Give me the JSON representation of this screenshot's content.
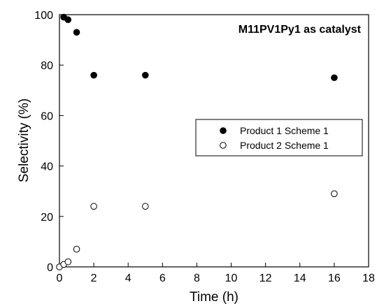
{
  "chart_data": {
    "type": "scatter",
    "title": "",
    "annotation": "M11PV1Py1 as catalyst",
    "xlabel": "Time (h)",
    "ylabel": "Selectivity (%)",
    "xlim": [
      0,
      18
    ],
    "ylim": [
      0,
      100
    ],
    "xticks": [
      "0",
      "2",
      "4",
      "6",
      "8",
      "10",
      "12",
      "14",
      "16",
      "18"
    ],
    "yticks": [
      "0",
      "20",
      "40",
      "60",
      "80",
      "100"
    ],
    "grid": false,
    "legend_position": "center-right",
    "series": [
      {
        "name": "Product 1 Scheme 1",
        "marker": "filled-circle",
        "color": "#000000",
        "x": [
          0.25,
          0.5,
          1,
          2,
          5,
          16
        ],
        "y": [
          99,
          98,
          93,
          76,
          76,
          75
        ]
      },
      {
        "name": "Product 2 Scheme 1",
        "marker": "open-circle",
        "color": "#000000",
        "x": [
          0,
          0.25,
          0.5,
          1,
          2,
          5,
          16
        ],
        "y": [
          0,
          1,
          2,
          7,
          24,
          24,
          29
        ]
      }
    ]
  }
}
